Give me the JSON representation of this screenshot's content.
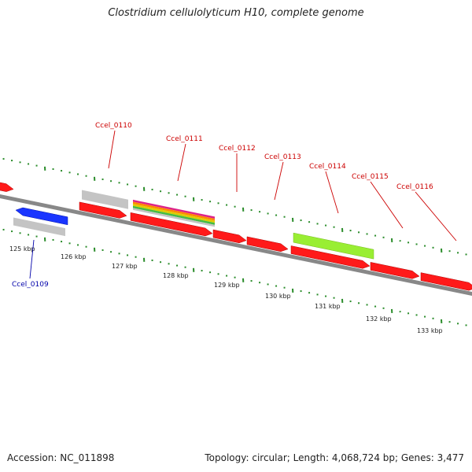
{
  "title": "Clostridium cellulolyticum H10, complete genome",
  "footer": {
    "accession": "Accession: NC_011898",
    "summary": "Topology: circular; Length: 4,068,724 bp; Genes: 3,477"
  },
  "colors": {
    "cds": "#ff1a1a",
    "grey_feature": "#c4c4c4",
    "reverse_cds": "#1a35ff",
    "lime_feature": "#99ee33",
    "tick": "#2a8c2a",
    "backbone": "#888888",
    "label_forward": "#cc0000",
    "label_reverse": "#0000aa"
  },
  "kbp_labels": [
    "125 kbp",
    "126 kbp",
    "127 kbp",
    "128 kbp",
    "129 kbp",
    "130 kbp",
    "131 kbp",
    "132 kbp",
    "133 kbp"
  ],
  "gene_labels": [
    {
      "id": "Ccel_0110",
      "strand": "forward"
    },
    {
      "id": "Ccel_0111",
      "strand": "forward"
    },
    {
      "id": "Ccel_0112",
      "strand": "forward"
    },
    {
      "id": "Ccel_0113",
      "strand": "forward"
    },
    {
      "id": "Ccel_0114",
      "strand": "forward"
    },
    {
      "id": "Ccel_0115",
      "strand": "forward"
    },
    {
      "id": "Ccel_0116",
      "strand": "forward"
    },
    {
      "id": "Ccel_0109",
      "strand": "reverse"
    }
  ]
}
